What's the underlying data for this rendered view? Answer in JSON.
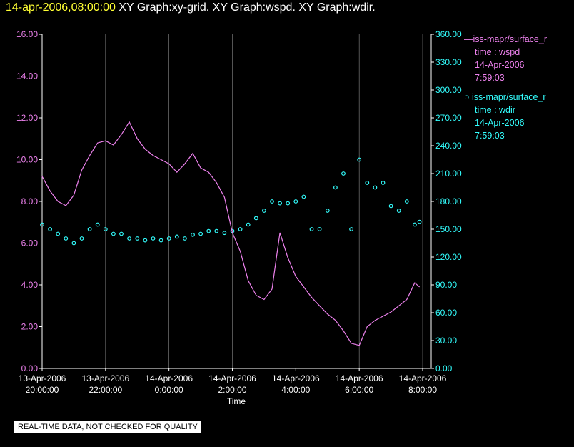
{
  "header": {
    "timestamp": "14-apr-2006,08:00:00",
    "graphs": "XY Graph:xy-grid.  XY Graph:wspd.  XY Graph:wdir."
  },
  "legend": {
    "wspd": {
      "source": "—iss-mapr/surface_r",
      "line2": "time : wspd",
      "date": "14-Apr-2006",
      "time": "7:59:03"
    },
    "wdir": {
      "source": "○ iss-mapr/surface_r",
      "line2": "time : wdir",
      "date": "14-Apr-2006",
      "time": "7:59:03"
    }
  },
  "note": "REAL-TIME DATA, NOT CHECKED FOR QUALITY",
  "colors": {
    "wspd": "#ee82ee",
    "wdir": "#33ffff",
    "grid": "#ffffff",
    "axis_text": "#ffffff"
  },
  "chart_data": {
    "type": "line",
    "xlabel": "Time",
    "x_ticks": [
      {
        "hours": 0,
        "line1": "13-Apr-2006",
        "line2": "20:00:00"
      },
      {
        "hours": 2,
        "line1": "13-Apr-2006",
        "line2": "22:00:00"
      },
      {
        "hours": 4,
        "line1": "14-Apr-2006",
        "line2": "0:00:00"
      },
      {
        "hours": 6,
        "line1": "14-Apr-2006",
        "line2": "2:00:00"
      },
      {
        "hours": 8,
        "line1": "14-Apr-2006",
        "line2": "4:00:00"
      },
      {
        "hours": 10,
        "line1": "14-Apr-2006",
        "line2": "6:00:00"
      },
      {
        "hours": 12,
        "line1": "14-Apr-2006",
        "line2": "8:00:00"
      }
    ],
    "xlim_hours": [
      0,
      12
    ],
    "y_left": {
      "range": [
        0,
        16
      ],
      "ticks": [
        "0.00",
        "2.00",
        "4.00",
        "6.00",
        "8.00",
        "10.00",
        "12.00",
        "14.00",
        "16.00"
      ]
    },
    "y_right": {
      "range": [
        0,
        360
      ],
      "ticks": [
        "0.00",
        "30.00",
        "60.00",
        "90.00",
        "120.00",
        "150.00",
        "180.00",
        "210.00",
        "240.00",
        "270.00",
        "300.00",
        "330.00",
        "360.00"
      ]
    },
    "grid": "vertical",
    "series": [
      {
        "name": "iss-mapr/surface_r time : wspd",
        "axis": "left",
        "style": "line",
        "x": [
          0,
          0.25,
          0.5,
          0.75,
          1,
          1.25,
          1.5,
          1.75,
          2,
          2.25,
          2.5,
          2.75,
          3,
          3.25,
          3.5,
          3.75,
          4,
          4.25,
          4.5,
          4.75,
          5,
          5.25,
          5.5,
          5.75,
          6,
          6.25,
          6.5,
          6.75,
          7,
          7.25,
          7.5,
          7.75,
          8,
          8.25,
          8.5,
          8.75,
          9,
          9.25,
          9.5,
          9.75,
          10,
          10.25,
          10.5,
          10.75,
          11,
          11.25,
          11.5,
          11.75,
          11.9
        ],
        "y": [
          9.2,
          8.5,
          8.0,
          7.8,
          8.3,
          9.5,
          10.2,
          10.8,
          10.9,
          10.7,
          11.2,
          11.8,
          11.0,
          10.5,
          10.2,
          10.0,
          9.8,
          9.4,
          9.8,
          10.3,
          9.6,
          9.4,
          8.9,
          8.2,
          6.5,
          5.6,
          4.2,
          3.5,
          3.3,
          3.8,
          6.5,
          5.3,
          4.4,
          3.9,
          3.4,
          3.0,
          2.6,
          2.3,
          1.8,
          1.2,
          1.1,
          2.0,
          2.3,
          2.5,
          2.7,
          3.0,
          3.3,
          4.1,
          3.9
        ]
      },
      {
        "name": "iss-mapr/surface_r time : wdir",
        "axis": "right",
        "style": "scatter",
        "x": [
          0,
          0.25,
          0.5,
          0.75,
          1,
          1.25,
          1.5,
          1.75,
          2,
          2.25,
          2.5,
          2.75,
          3,
          3.25,
          3.5,
          3.75,
          4,
          4.25,
          4.5,
          4.75,
          5,
          5.25,
          5.5,
          5.75,
          6,
          6.25,
          6.5,
          6.75,
          7,
          7.25,
          7.5,
          7.75,
          8,
          8.25,
          8.5,
          8.75,
          9,
          9.25,
          9.5,
          9.75,
          10,
          10.25,
          10.5,
          10.75,
          11,
          11.25,
          11.5,
          11.75,
          11.9
        ],
        "y": [
          155,
          150,
          145,
          140,
          135,
          140,
          150,
          155,
          150,
          145,
          145,
          140,
          140,
          138,
          140,
          138,
          140,
          142,
          140,
          144,
          145,
          148,
          148,
          146,
          148,
          150,
          155,
          162,
          170,
          180,
          178,
          178,
          180,
          185,
          150,
          150,
          170,
          195,
          210,
          150,
          225,
          200,
          195,
          200,
          175,
          170,
          180,
          155,
          158
        ]
      }
    ]
  }
}
